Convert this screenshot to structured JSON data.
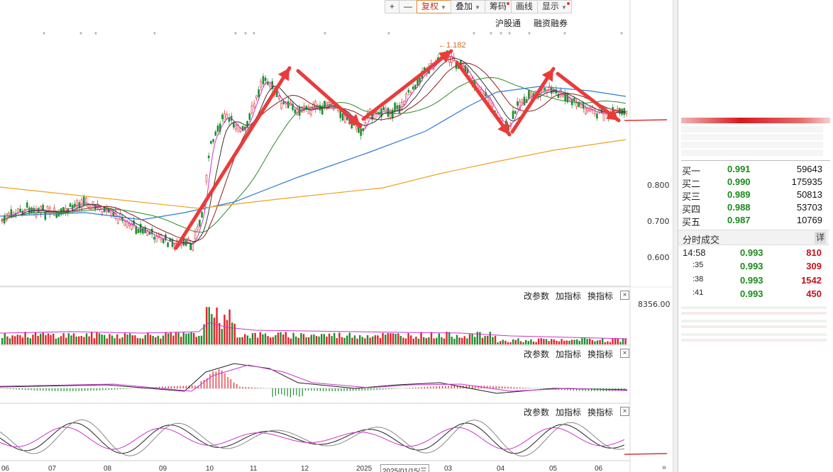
{
  "toolbar": {
    "plus": "+",
    "minus": "—",
    "fuquan": "复权",
    "diejia": "叠加",
    "chouma": "筹码",
    "huaxian": "画线",
    "xianshi": "显示"
  },
  "links": {
    "hgt": "沪股通",
    "rzrq": "融资融券"
  },
  "indicator_controls": {
    "gaicanshu": "改参数",
    "jiazhibiao": "加指标",
    "huanzhibiao": "换指标",
    "close": "×"
  },
  "annotations": {
    "high": "←1.182"
  },
  "price_axis": [
    "0.800",
    "0.700",
    "0.600"
  ],
  "volume_axis": "8356.00",
  "months": [
    "06",
    "07",
    "08",
    "09",
    "10",
    "11",
    "12",
    "2025",
    "03",
    "04",
    "05",
    "06"
  ],
  "cursor_date": "2025/01/15/三",
  "order_book": [
    {
      "label": "买一",
      "price": "0.991",
      "vol": "59643"
    },
    {
      "label": "买二",
      "price": "0.990",
      "vol": "175935"
    },
    {
      "label": "买三",
      "price": "0.989",
      "vol": "50813"
    },
    {
      "label": "买四",
      "price": "0.988",
      "vol": "53703"
    },
    {
      "label": "买五",
      "price": "0.987",
      "vol": "10769"
    }
  ],
  "ticks_header": {
    "title": "分时成交",
    "detail": "详"
  },
  "ticks": [
    {
      "time": "14:58",
      "price": "0.993",
      "vol": "810",
      "side": "red"
    },
    {
      "time": ":35",
      "price": "0.993",
      "vol": "309",
      "side": "red"
    },
    {
      "time": ":38",
      "price": "0.993",
      "vol": "1542",
      "side": "red"
    },
    {
      "time": ":41",
      "price": "0.993",
      "vol": "450",
      "side": "red"
    }
  ],
  "colors": {
    "up": "#e0252b",
    "down": "#1d8f2e",
    "arrow": "#ea3b3b",
    "ma_long": "#f0a020",
    "ma_mid": "#2b7bd6"
  }
}
